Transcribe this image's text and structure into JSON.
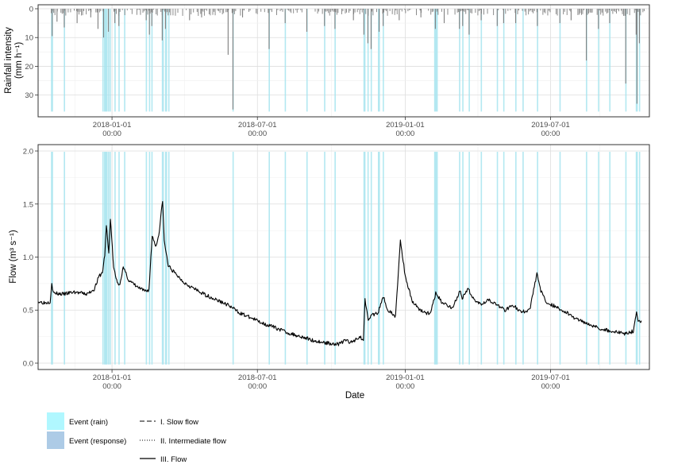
{
  "colors": {
    "event_rain": "#b0f7ff",
    "event_response": "#adcbe6",
    "event_overlay": "#a6e4ef",
    "rain_bars": "#7f7f7f",
    "flow_line": "#000000",
    "grid_major": "#dedede",
    "grid_minor": "#efefef",
    "panel_border": "#333333",
    "tick_text": "#4d4d4d"
  },
  "chart_data": [
    {
      "type": "bar",
      "panel": "rainfall",
      "ylabel_line1": "Rainfall intensity",
      "ylabel_line2": "(mm h⁻¹)",
      "y_reversed": true,
      "ylim": [
        0,
        37
      ],
      "yticks": [
        0,
        10,
        20,
        30
      ],
      "xlim": [
        "2017-10-01",
        "2019-11-01"
      ],
      "xticks": [
        {
          "date": "2018-01-01",
          "line1": "2018-01-01",
          "line2": "00:00"
        },
        {
          "date": "2018-07-01",
          "line1": "2018-07-01",
          "line2": "00:00"
        },
        {
          "date": "2019-01-01",
          "line1": "2019-01-01",
          "line2": "00:00"
        },
        {
          "date": "2019-07-01",
          "line1": "2019-07-01",
          "line2": "00:00"
        }
      ],
      "grid": true,
      "events_overlay": [
        [
          "2017-10-17",
          "2017-10-18"
        ],
        [
          "2017-11-02",
          "2017-11-02"
        ],
        [
          "2017-12-20",
          "2017-12-20"
        ],
        [
          "2017-12-22",
          "2017-12-23"
        ],
        [
          "2017-12-24",
          "2017-12-25"
        ],
        [
          "2017-12-27",
          "2017-12-27"
        ],
        [
          "2017-12-29",
          "2017-12-29"
        ],
        [
          "2018-01-04",
          "2018-01-04"
        ],
        [
          "2018-01-09",
          "2018-01-09"
        ],
        [
          "2018-01-16",
          "2018-01-16"
        ],
        [
          "2018-02-12",
          "2018-02-12"
        ],
        [
          "2018-02-16",
          "2018-02-16"
        ],
        [
          "2018-02-19",
          "2018-02-19"
        ],
        [
          "2018-03-04",
          "2018-03-05"
        ],
        [
          "2018-03-08",
          "2018-03-09"
        ],
        [
          "2018-03-12",
          "2018-03-12"
        ],
        [
          "2018-05-31",
          "2018-05-31"
        ],
        [
          "2018-07-15",
          "2018-07-15"
        ],
        [
          "2018-08-04",
          "2018-08-04"
        ],
        [
          "2018-08-31",
          "2018-08-31"
        ],
        [
          "2018-09-22",
          "2018-09-22"
        ],
        [
          "2018-10-05",
          "2018-10-05"
        ],
        [
          "2018-11-10",
          "2018-11-11"
        ],
        [
          "2018-11-15",
          "2018-11-15"
        ],
        [
          "2018-11-19",
          "2018-11-19"
        ],
        [
          "2018-11-28",
          "2018-11-29"
        ],
        [
          "2018-12-04",
          "2018-12-04"
        ],
        [
          "2019-02-06",
          "2019-02-09"
        ],
        [
          "2019-03-09",
          "2019-03-09"
        ],
        [
          "2019-03-13",
          "2019-03-13"
        ],
        [
          "2019-03-21",
          "2019-03-21"
        ],
        [
          "2019-04-05",
          "2019-04-05"
        ],
        [
          "2019-04-25",
          "2019-04-25"
        ],
        [
          "2019-05-03",
          "2019-05-03"
        ],
        [
          "2019-05-18",
          "2019-05-18"
        ],
        [
          "2019-05-27",
          "2019-05-27"
        ],
        [
          "2019-06-14",
          "2019-06-14"
        ],
        [
          "2019-07-12",
          "2019-07-12"
        ],
        [
          "2019-08-14",
          "2019-08-14"
        ],
        [
          "2019-08-29",
          "2019-08-29"
        ],
        [
          "2019-09-12",
          "2019-09-12"
        ],
        [
          "2019-10-02",
          "2019-10-02"
        ],
        [
          "2019-10-15",
          "2019-10-16"
        ],
        [
          "2019-10-19",
          "2019-10-19"
        ]
      ],
      "rain_peaks": [
        {
          "date": "2017-10-18",
          "value": 9.5
        },
        {
          "date": "2017-10-24",
          "value": 4.5
        },
        {
          "date": "2017-11-02",
          "value": 6.5
        },
        {
          "date": "2017-11-18",
          "value": 5
        },
        {
          "date": "2017-12-05",
          "value": 3
        },
        {
          "date": "2017-12-14",
          "value": 7
        },
        {
          "date": "2017-12-21",
          "value": 10
        },
        {
          "date": "2017-12-27",
          "value": 8
        },
        {
          "date": "2018-01-04",
          "value": 5
        },
        {
          "date": "2018-01-09",
          "value": 6
        },
        {
          "date": "2018-02-12",
          "value": 4
        },
        {
          "date": "2018-02-16",
          "value": 9
        },
        {
          "date": "2018-02-19",
          "value": 6
        },
        {
          "date": "2018-03-04",
          "value": 11
        },
        {
          "date": "2018-03-08",
          "value": 7
        },
        {
          "date": "2018-04-07",
          "value": 4
        },
        {
          "date": "2018-04-22",
          "value": 3
        },
        {
          "date": "2018-05-25",
          "value": 16
        },
        {
          "date": "2018-05-31",
          "value": 35
        },
        {
          "date": "2018-06-12",
          "value": 3
        },
        {
          "date": "2018-07-15",
          "value": 14
        },
        {
          "date": "2018-08-04",
          "value": 5
        },
        {
          "date": "2018-08-31",
          "value": 8
        },
        {
          "date": "2018-09-22",
          "value": 6
        },
        {
          "date": "2018-10-05",
          "value": 7
        },
        {
          "date": "2018-10-28",
          "value": 4
        },
        {
          "date": "2018-11-10",
          "value": 9
        },
        {
          "date": "2018-11-15",
          "value": 12
        },
        {
          "date": "2018-11-19",
          "value": 14
        },
        {
          "date": "2018-11-29",
          "value": 8
        },
        {
          "date": "2018-12-04",
          "value": 6
        },
        {
          "date": "2018-12-24",
          "value": 4
        },
        {
          "date": "2019-01-20",
          "value": 3
        },
        {
          "date": "2019-02-07",
          "value": 7
        },
        {
          "date": "2019-02-18",
          "value": 5
        },
        {
          "date": "2019-03-09",
          "value": 7
        },
        {
          "date": "2019-03-13",
          "value": 6
        },
        {
          "date": "2019-03-21",
          "value": 9
        },
        {
          "date": "2019-04-05",
          "value": 4
        },
        {
          "date": "2019-04-25",
          "value": 6
        },
        {
          "date": "2019-05-03",
          "value": 5
        },
        {
          "date": "2019-05-18",
          "value": 5
        },
        {
          "date": "2019-06-14",
          "value": 6
        },
        {
          "date": "2019-07-12",
          "value": 5
        },
        {
          "date": "2019-07-26",
          "value": 4
        },
        {
          "date": "2019-08-14",
          "value": 18
        },
        {
          "date": "2019-08-29",
          "value": 7
        },
        {
          "date": "2019-09-12",
          "value": 5
        },
        {
          "date": "2019-10-02",
          "value": 26
        },
        {
          "date": "2019-10-15",
          "value": 9
        },
        {
          "date": "2019-10-16",
          "value": 33
        },
        {
          "date": "2019-10-19",
          "value": 12
        }
      ]
    },
    {
      "type": "line",
      "panel": "flow",
      "ylabel": "Flow (m³ s⁻¹)",
      "xlabel": "Date",
      "ylim": [
        -0.06,
        2.06
      ],
      "yticks": [
        0.0,
        0.5,
        1.0,
        1.5,
        2.0
      ],
      "ytick_labels": [
        "0.0",
        "0.5",
        "1.0",
        "1.5",
        "2.0"
      ],
      "grid": true,
      "series": [
        {
          "name": "III. Flow",
          "points": [
            [
              "2017-10-01",
              0.58
            ],
            [
              "2017-10-10",
              0.57
            ],
            [
              "2017-10-16",
              0.58
            ],
            [
              "2017-10-18",
              0.76
            ],
            [
              "2017-10-20",
              0.66
            ],
            [
              "2017-11-01",
              0.65
            ],
            [
              "2017-11-15",
              0.67
            ],
            [
              "2017-12-01",
              0.65
            ],
            [
              "2017-12-10",
              0.7
            ],
            [
              "2017-12-16",
              0.82
            ],
            [
              "2017-12-20",
              0.85
            ],
            [
              "2017-12-23",
              1.02
            ],
            [
              "2017-12-25",
              1.3
            ],
            [
              "2017-12-28",
              1.03
            ],
            [
              "2017-12-30",
              1.37
            ],
            [
              "2018-01-03",
              0.9
            ],
            [
              "2018-01-06",
              0.8
            ],
            [
              "2018-01-10",
              0.73
            ],
            [
              "2018-01-15",
              0.9
            ],
            [
              "2018-01-22",
              0.78
            ],
            [
              "2018-02-01",
              0.72
            ],
            [
              "2018-02-10",
              0.68
            ],
            [
              "2018-02-16",
              0.69
            ],
            [
              "2018-02-20",
              1.2
            ],
            [
              "2018-02-25",
              1.1
            ],
            [
              "2018-03-01",
              1.25
            ],
            [
              "2018-03-05",
              1.54
            ],
            [
              "2018-03-07",
              1.15
            ],
            [
              "2018-03-12",
              0.92
            ],
            [
              "2018-03-20",
              0.85
            ],
            [
              "2018-04-01",
              0.76
            ],
            [
              "2018-04-20",
              0.67
            ],
            [
              "2018-05-10",
              0.6
            ],
            [
              "2018-05-25",
              0.55
            ],
            [
              "2018-06-10",
              0.47
            ],
            [
              "2018-06-25",
              0.42
            ],
            [
              "2018-07-10",
              0.37
            ],
            [
              "2018-07-25",
              0.33
            ],
            [
              "2018-08-10",
              0.28
            ],
            [
              "2018-08-25",
              0.25
            ],
            [
              "2018-09-10",
              0.21
            ],
            [
              "2018-09-25",
              0.19
            ],
            [
              "2018-10-10",
              0.18
            ],
            [
              "2018-10-20",
              0.22
            ],
            [
              "2018-10-25",
              0.19
            ],
            [
              "2018-11-05",
              0.25
            ],
            [
              "2018-11-10",
              0.22
            ],
            [
              "2018-11-12",
              0.6
            ],
            [
              "2018-11-16",
              0.42
            ],
            [
              "2018-11-20",
              0.45
            ],
            [
              "2018-11-28",
              0.47
            ],
            [
              "2018-12-05",
              0.63
            ],
            [
              "2018-12-10",
              0.5
            ],
            [
              "2018-12-20",
              0.44
            ],
            [
              "2018-12-26",
              1.16
            ],
            [
              "2019-01-01",
              0.82
            ],
            [
              "2019-01-10",
              0.58
            ],
            [
              "2019-01-20",
              0.5
            ],
            [
              "2019-02-01",
              0.46
            ],
            [
              "2019-02-08",
              0.66
            ],
            [
              "2019-02-15",
              0.58
            ],
            [
              "2019-03-01",
              0.52
            ],
            [
              "2019-03-10",
              0.68
            ],
            [
              "2019-03-13",
              0.61
            ],
            [
              "2019-03-21",
              0.7
            ],
            [
              "2019-03-25",
              0.62
            ],
            [
              "2019-04-05",
              0.56
            ],
            [
              "2019-04-15",
              0.6
            ],
            [
              "2019-04-25",
              0.55
            ],
            [
              "2019-05-05",
              0.5
            ],
            [
              "2019-05-15",
              0.55
            ],
            [
              "2019-05-25",
              0.48
            ],
            [
              "2019-06-05",
              0.5
            ],
            [
              "2019-06-14",
              0.85
            ],
            [
              "2019-06-18",
              0.7
            ],
            [
              "2019-06-25",
              0.58
            ],
            [
              "2019-07-05",
              0.54
            ],
            [
              "2019-07-20",
              0.48
            ],
            [
              "2019-08-01",
              0.42
            ],
            [
              "2019-08-15",
              0.38
            ],
            [
              "2019-08-30",
              0.33
            ],
            [
              "2019-09-15",
              0.3
            ],
            [
              "2019-10-01",
              0.28
            ],
            [
              "2019-10-12",
              0.3
            ],
            [
              "2019-10-16",
              0.5
            ],
            [
              "2019-10-18",
              0.38
            ],
            [
              "2019-10-22",
              0.4
            ]
          ]
        }
      ]
    }
  ],
  "legend": {
    "event_rain": "Event (rain)",
    "event_response": "Event (response)",
    "slow_flow": "I. Slow flow",
    "intermediate_flow": "II. Intermediate flow",
    "flow": "III. Flow"
  }
}
